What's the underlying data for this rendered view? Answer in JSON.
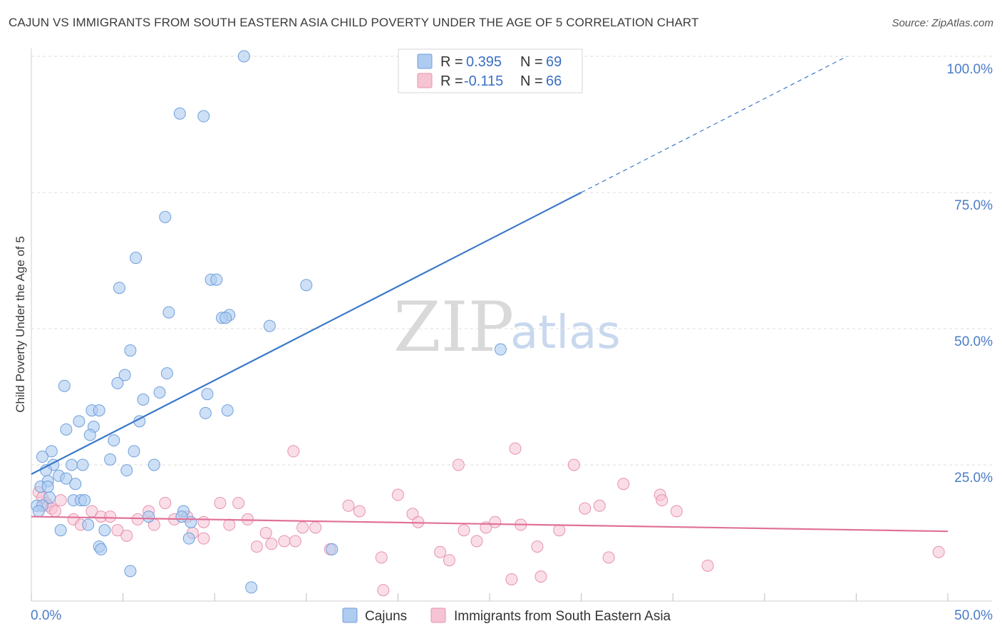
{
  "title": "CAJUN VS IMMIGRANTS FROM SOUTH EASTERN ASIA CHILD POVERTY UNDER THE AGE OF 5 CORRELATION CHART",
  "source": "Source: ZipAtlas.com",
  "watermark": {
    "zip": "ZIP",
    "atlas": "atlas"
  },
  "colors": {
    "blue": "#3a78c9",
    "blue_fill": "#aecbf0",
    "pink": "#e0719a",
    "pink_fill": "#f6c3d3",
    "tick": "#4a7cc7"
  },
  "legend": {
    "r_label": "R = ",
    "n_label": "N = ",
    "cajun": {
      "r": "0.395",
      "n": "69"
    },
    "sea": {
      "r": "-0.115",
      "n": "66"
    }
  },
  "bottom_legend": {
    "cajun": "Cajuns",
    "sea": "Immigrants from South Eastern Asia"
  },
  "chart_data": {
    "type": "scatter",
    "title": "CAJUN VS IMMIGRANTS FROM SOUTH EASTERN ASIA CHILD POVERTY UNDER THE AGE OF 5 CORRELATION CHART",
    "xlabel": "",
    "ylabel": "Child Poverty Under the Age of 5",
    "xlim": [
      0,
      50
    ],
    "ylim": [
      0,
      100
    ],
    "x_tick_labels": [
      "0.0%",
      "50.0%"
    ],
    "y_ticks": [
      25,
      50,
      75,
      100
    ],
    "y_tick_labels": [
      "25.0%",
      "50.0%",
      "75.0%",
      "100.0%"
    ],
    "grid": true,
    "series": [
      {
        "name": "Cajuns",
        "r": 0.395,
        "n": 69,
        "trend": {
          "x0": 0,
          "y0": 23.3,
          "x1": 30,
          "y1": 75,
          "dashed_to_x": 44.5,
          "dashed_to_y": 100
        },
        "points": [
          [
            11.6,
            100
          ],
          [
            8.1,
            89.5
          ],
          [
            9.4,
            89
          ],
          [
            7.3,
            70.5
          ],
          [
            5.7,
            63
          ],
          [
            4.8,
            57.5
          ],
          [
            9.8,
            59
          ],
          [
            10.1,
            59
          ],
          [
            15.0,
            58
          ],
          [
            7.5,
            53
          ],
          [
            10.8,
            52.5
          ],
          [
            10.4,
            52
          ],
          [
            10.6,
            52
          ],
          [
            13.0,
            50.5
          ],
          [
            25.6,
            46.2
          ],
          [
            5.4,
            46
          ],
          [
            5.1,
            41.5
          ],
          [
            7.4,
            41.8
          ],
          [
            1.8,
            39.5
          ],
          [
            4.7,
            40
          ],
          [
            7.0,
            38.3
          ],
          [
            6.1,
            37
          ],
          [
            9.6,
            38
          ],
          [
            9.5,
            34.5
          ],
          [
            10.7,
            35
          ],
          [
            3.3,
            35
          ],
          [
            3.7,
            35
          ],
          [
            2.6,
            33
          ],
          [
            5.9,
            33
          ],
          [
            3.4,
            32
          ],
          [
            1.9,
            31.5
          ],
          [
            3.2,
            30.5
          ],
          [
            4.5,
            29.5
          ],
          [
            1.1,
            27.5
          ],
          [
            5.6,
            27.5
          ],
          [
            0.6,
            26.5
          ],
          [
            4.3,
            26
          ],
          [
            1.2,
            25
          ],
          [
            2.2,
            25
          ],
          [
            2.8,
            25
          ],
          [
            6.7,
            25
          ],
          [
            0.8,
            24
          ],
          [
            5.2,
            24
          ],
          [
            1.5,
            23
          ],
          [
            1.9,
            22.5
          ],
          [
            0.9,
            22
          ],
          [
            2.4,
            21.5
          ],
          [
            0.5,
            21
          ],
          [
            0.9,
            21
          ],
          [
            1.0,
            19
          ],
          [
            2.3,
            18.5
          ],
          [
            2.7,
            18.5
          ],
          [
            2.9,
            18.5
          ],
          [
            0.3,
            17.5
          ],
          [
            0.6,
            17.5
          ],
          [
            8.3,
            16.5
          ],
          [
            6.4,
            15.5
          ],
          [
            8.2,
            15.5
          ],
          [
            3.1,
            14
          ],
          [
            8.7,
            14.5
          ],
          [
            1.6,
            13
          ],
          [
            4.0,
            13
          ],
          [
            8.6,
            11.5
          ],
          [
            3.7,
            10
          ],
          [
            3.8,
            9.5
          ],
          [
            16.4,
            9.5
          ],
          [
            5.4,
            5.5
          ],
          [
            12.0,
            2.5
          ],
          [
            0.4,
            16.5
          ]
        ]
      },
      {
        "name": "Immigrants from South Eastern Asia",
        "r": -0.115,
        "n": 66,
        "trend": {
          "x0": 0,
          "y0": 15.5,
          "x1": 50,
          "y1": 12.8
        },
        "points": [
          [
            0.4,
            20
          ],
          [
            0.6,
            19
          ],
          [
            0.8,
            18
          ],
          [
            0.9,
            17.5
          ],
          [
            1.1,
            17
          ],
          [
            1.3,
            16.5
          ],
          [
            1.6,
            18.5
          ],
          [
            2.3,
            15
          ],
          [
            2.7,
            14
          ],
          [
            3.3,
            16.5
          ],
          [
            3.8,
            15.5
          ],
          [
            4.3,
            15.5
          ],
          [
            4.7,
            13
          ],
          [
            5.2,
            12
          ],
          [
            5.8,
            15
          ],
          [
            6.4,
            16.5
          ],
          [
            6.7,
            14
          ],
          [
            7.3,
            18
          ],
          [
            7.8,
            15
          ],
          [
            8.5,
            15.5
          ],
          [
            8.8,
            12.5
          ],
          [
            9.4,
            11.5
          ],
          [
            9.4,
            14.5
          ],
          [
            10.3,
            18
          ],
          [
            10.8,
            14
          ],
          [
            11.3,
            18
          ],
          [
            11.8,
            15
          ],
          [
            12.3,
            10
          ],
          [
            12.8,
            12.5
          ],
          [
            13.1,
            10.5
          ],
          [
            13.8,
            11
          ],
          [
            14.4,
            11
          ],
          [
            14.8,
            13.5
          ],
          [
            15.5,
            13.5
          ],
          [
            14.3,
            27.5
          ],
          [
            16.3,
            9.5
          ],
          [
            17.3,
            17.5
          ],
          [
            17.9,
            16.5
          ],
          [
            19.1,
            8
          ],
          [
            19.2,
            2
          ],
          [
            20.0,
            19.5
          ],
          [
            20.8,
            16
          ],
          [
            21.1,
            14.5
          ],
          [
            22.3,
            9
          ],
          [
            22.8,
            7.5
          ],
          [
            23.3,
            25
          ],
          [
            23.6,
            13
          ],
          [
            24.3,
            11
          ],
          [
            24.8,
            13.5
          ],
          [
            25.3,
            14.5
          ],
          [
            26.2,
            4
          ],
          [
            26.4,
            28
          ],
          [
            26.7,
            14
          ],
          [
            27.6,
            10
          ],
          [
            27.8,
            4.5
          ],
          [
            28.8,
            13
          ],
          [
            29.6,
            25
          ],
          [
            30.2,
            17
          ],
          [
            31.0,
            17.5
          ],
          [
            31.5,
            8
          ],
          [
            32.3,
            21.5
          ],
          [
            34.3,
            19.5
          ],
          [
            34.4,
            18.5
          ],
          [
            35.2,
            16.5
          ],
          [
            36.9,
            6.5
          ],
          [
            49.5,
            9
          ]
        ]
      }
    ]
  }
}
